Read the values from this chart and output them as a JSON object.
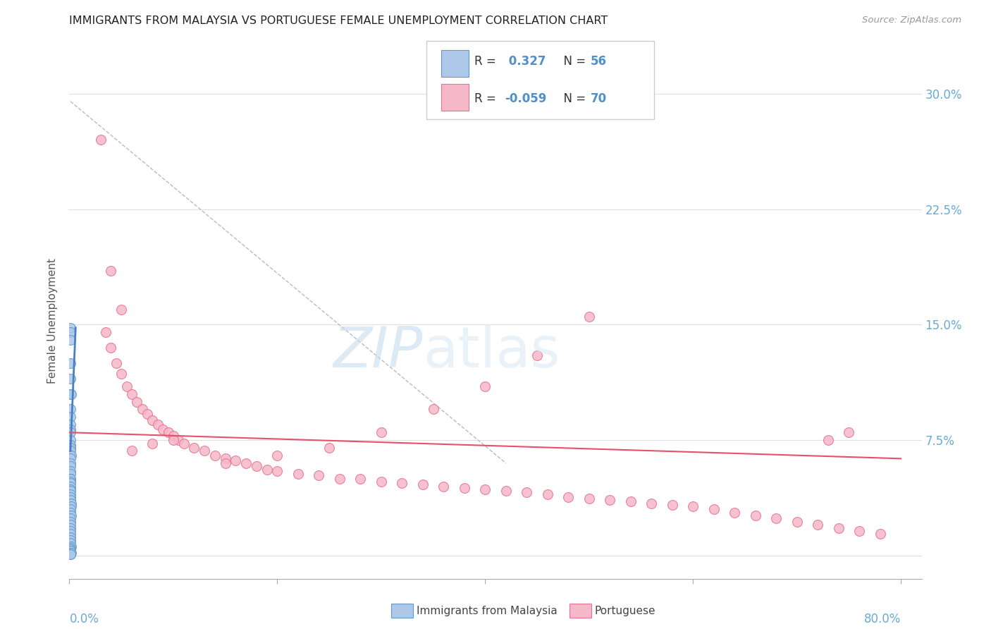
{
  "title": "IMMIGRANTS FROM MALAYSIA VS PORTUGUESE FEMALE UNEMPLOYMENT CORRELATION CHART",
  "source": "Source: ZipAtlas.com",
  "ylabel": "Female Unemployment",
  "watermark_zip": "ZIP",
  "watermark_atlas": "atlas",
  "legend_label1": "Immigrants from Malaysia",
  "legend_label2": "Portuguese",
  "yticks": [
    0.0,
    0.075,
    0.15,
    0.225,
    0.3
  ],
  "ytick_labels": [
    "",
    "7.5%",
    "15.0%",
    "22.5%",
    "30.0%"
  ],
  "color_blue": "#adc8e8",
  "color_pink": "#f5b8c8",
  "color_blue_line": "#4a7fc1",
  "color_pink_line": "#e8506a",
  "color_blue_edge": "#6098cc",
  "color_pink_edge": "#e87090",
  "blue_scatter_x": [
    0.001,
    0.001,
    0.001,
    0.002,
    0.001,
    0.001,
    0.001,
    0.001,
    0.001,
    0.001,
    0.001,
    0.001,
    0.001,
    0.001,
    0.002,
    0.001,
    0.001,
    0.001,
    0.001,
    0.001,
    0.001,
    0.001,
    0.001,
    0.001,
    0.001,
    0.001,
    0.001,
    0.001,
    0.001,
    0.001,
    0.002,
    0.002,
    0.001,
    0.001,
    0.002,
    0.001,
    0.001,
    0.001,
    0.001,
    0.001,
    0.001,
    0.001,
    0.001,
    0.001,
    0.002,
    0.001,
    0.001,
    0.001,
    0.001,
    0.001,
    0.002,
    0.001,
    0.001,
    0.001,
    0.001,
    0.001
  ],
  "blue_scatter_y": [
    0.125,
    0.115,
    0.105,
    0.105,
    0.095,
    0.09,
    0.085,
    0.082,
    0.08,
    0.075,
    0.072,
    0.07,
    0.068,
    0.065,
    0.065,
    0.063,
    0.06,
    0.058,
    0.055,
    0.053,
    0.05,
    0.05,
    0.048,
    0.047,
    0.045,
    0.043,
    0.042,
    0.04,
    0.038,
    0.036,
    0.034,
    0.032,
    0.03,
    0.028,
    0.026,
    0.024,
    0.022,
    0.02,
    0.018,
    0.016,
    0.014,
    0.012,
    0.01,
    0.008,
    0.006,
    0.005,
    0.004,
    0.003,
    0.003,
    0.002,
    0.002,
    0.001,
    0.001,
    0.148,
    0.145,
    0.14
  ],
  "pink_scatter_x": [
    0.03,
    0.04,
    0.05,
    0.035,
    0.04,
    0.045,
    0.05,
    0.055,
    0.06,
    0.065,
    0.07,
    0.075,
    0.08,
    0.085,
    0.09,
    0.095,
    0.1,
    0.105,
    0.11,
    0.12,
    0.13,
    0.14,
    0.15,
    0.16,
    0.17,
    0.18,
    0.19,
    0.2,
    0.22,
    0.24,
    0.26,
    0.28,
    0.3,
    0.32,
    0.34,
    0.36,
    0.38,
    0.4,
    0.42,
    0.44,
    0.46,
    0.48,
    0.5,
    0.52,
    0.54,
    0.56,
    0.58,
    0.6,
    0.62,
    0.64,
    0.66,
    0.68,
    0.7,
    0.72,
    0.74,
    0.76,
    0.78,
    0.75,
    0.73,
    0.5,
    0.45,
    0.4,
    0.35,
    0.3,
    0.25,
    0.2,
    0.15,
    0.1,
    0.08,
    0.06
  ],
  "pink_scatter_y": [
    0.27,
    0.185,
    0.16,
    0.145,
    0.135,
    0.125,
    0.118,
    0.11,
    0.105,
    0.1,
    0.095,
    0.092,
    0.088,
    0.085,
    0.082,
    0.08,
    0.078,
    0.075,
    0.073,
    0.07,
    0.068,
    0.065,
    0.063,
    0.062,
    0.06,
    0.058,
    0.056,
    0.055,
    0.053,
    0.052,
    0.05,
    0.05,
    0.048,
    0.047,
    0.046,
    0.045,
    0.044,
    0.043,
    0.042,
    0.041,
    0.04,
    0.038,
    0.037,
    0.036,
    0.035,
    0.034,
    0.033,
    0.032,
    0.03,
    0.028,
    0.026,
    0.024,
    0.022,
    0.02,
    0.018,
    0.016,
    0.014,
    0.08,
    0.075,
    0.155,
    0.13,
    0.11,
    0.095,
    0.08,
    0.07,
    0.065,
    0.06,
    0.075,
    0.073,
    0.068
  ],
  "blue_line_x": [
    0.001,
    0.006
  ],
  "blue_line_y": [
    0.068,
    0.148
  ],
  "pink_line_x": [
    0.0,
    0.8
  ],
  "pink_line_y": [
    0.08,
    0.063
  ],
  "diag_line_x": [
    0.001,
    0.42
  ],
  "diag_line_y": [
    0.295,
    0.06
  ],
  "xlim": [
    0.0,
    0.82
  ],
  "ylim": [
    -0.015,
    0.32
  ],
  "xtick_positions": [
    0.0,
    0.2,
    0.4,
    0.6,
    0.8
  ],
  "background_color": "#ffffff",
  "grid_color": "#e0e0e0"
}
